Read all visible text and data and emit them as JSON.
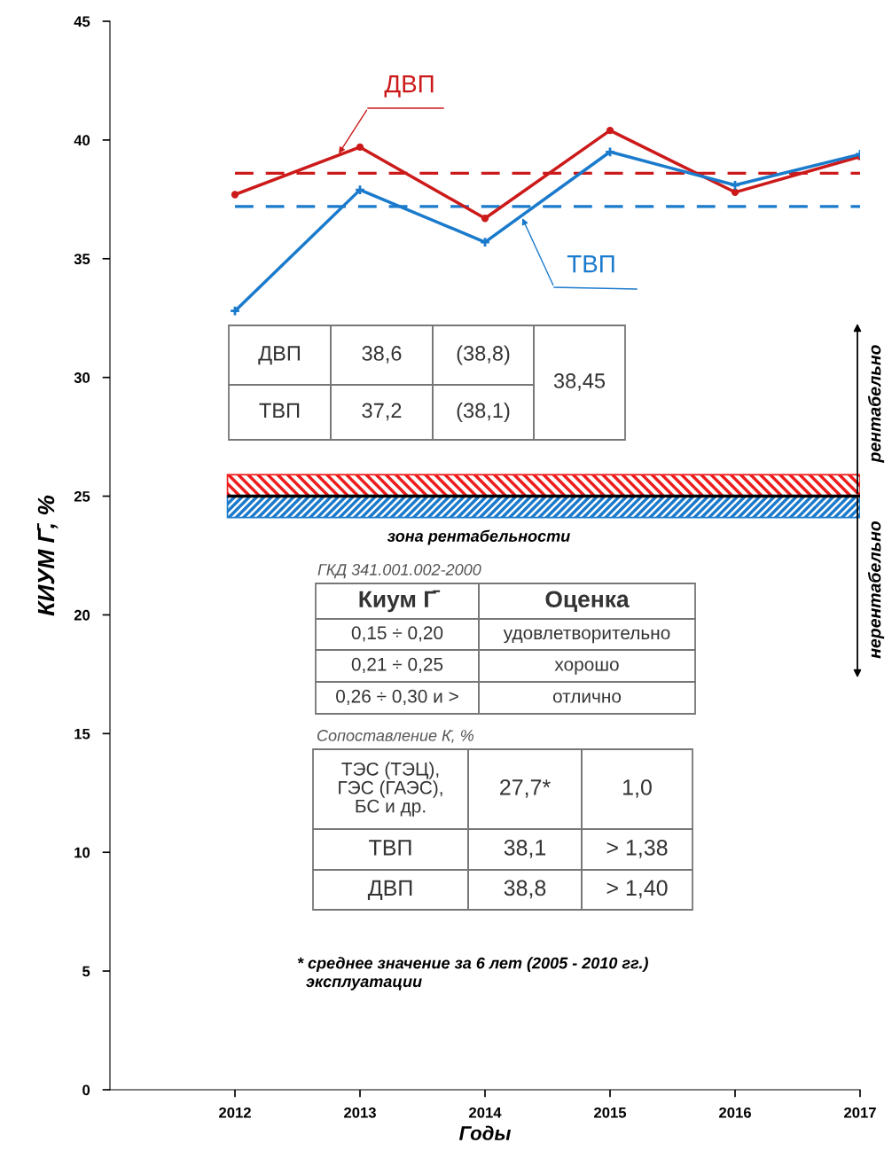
{
  "chart_data": {
    "type": "line",
    "xlabel": "Годы",
    "ylabel": "КИУМ Г̄, %",
    "x": [
      2012,
      2013,
      2014,
      2015,
      2016,
      2017
    ],
    "series": [
      {
        "name": "ДВП",
        "color": "#cc1a1a",
        "marker": "circle",
        "values": [
          37.7,
          39.7,
          36.7,
          40.4,
          37.8,
          39.3
        ]
      },
      {
        "name": "ТВП",
        "color": "#1a7acc",
        "marker": "cross",
        "values": [
          32.8,
          37.9,
          35.7,
          39.5,
          38.1,
          39.4
        ]
      }
    ],
    "xlim": [
      2011,
      2017
    ],
    "xticks": [
      2012,
      2013,
      2014,
      2015,
      2016,
      2017
    ],
    "ylim": [
      0,
      45
    ],
    "yticks": [
      0,
      5,
      10,
      15,
      20,
      25,
      30,
      35,
      40,
      45
    ],
    "grid": false,
    "legend": false,
    "line_style": "solid",
    "ref_lines": [
      {
        "axis": "y",
        "value": 38.6,
        "color": "#cc1a1a",
        "line_style": "dashed"
      },
      {
        "axis": "y",
        "value": 37.2,
        "color": "#1a7acc",
        "line_style": "dashed"
      },
      {
        "axis": "y",
        "value": 25,
        "color": "#000000",
        "line_style": "solid"
      }
    ],
    "bands": [
      {
        "axis": "y",
        "from": 25,
        "to": 25.9,
        "color": "#ee1c1c"
      },
      {
        "axis": "y",
        "from": 24.1,
        "to": 25,
        "color": "#1a7acc"
      }
    ],
    "annotations": [
      "ДВП",
      "38,6",
      "(38,8)",
      "38,45",
      "ТВП",
      "37,2",
      "(38,1)",
      "зона рентабельности",
      "ГКД 341.001.002-2000",
      "Киум Г̄",
      "Оценка",
      "0,15 ÷ 0,20",
      "удовлетворительно",
      "0,21 ÷ 0,25",
      "хорошо",
      "0,26 ÷ 0,30 и >",
      "отлично",
      "Сопоставление К̄, %",
      "ТЭС (ТЭЦ),\nГЭС (ГАЭС),\nБС и др.",
      "27,7*",
      "1,0",
      "ТВП",
      "38,1",
      "> 1,38",
      "ДВП",
      "38,8",
      "> 1,40",
      "* среднее значение за 6 лет (2005 - 2010 гг.)\n  эксплуатации",
      "рентабельно",
      "нерентабельно"
    ]
  }
}
